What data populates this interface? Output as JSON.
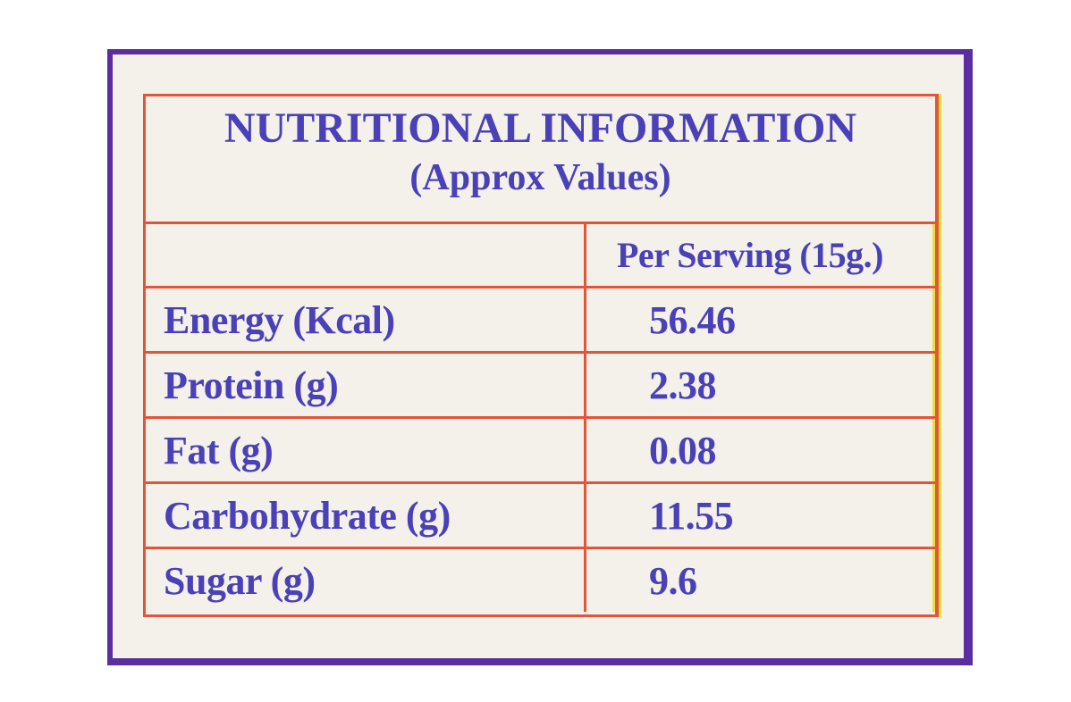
{
  "table": {
    "title": "NUTRITIONAL INFORMATION",
    "subtitle": "(Approx Values)",
    "column_header": "Per Serving (15g.)",
    "rows": [
      [
        "Energy (Kcal)",
        "56.46"
      ],
      [
        "Protein (g)",
        "2.38"
      ],
      [
        "Fat (g)",
        "0.08"
      ],
      [
        "Carbohydrate (g)",
        "11.55"
      ],
      [
        "Sugar (g)",
        "9.6"
      ]
    ]
  }
}
